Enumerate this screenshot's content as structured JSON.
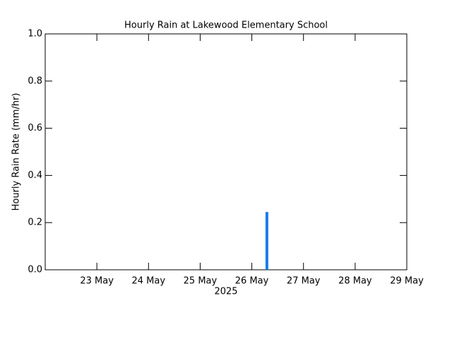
{
  "chart_data": {
    "type": "bar",
    "title": "Hourly Rain at Lakewood Elementary School",
    "ylabel": "Hourly Rain Rate (mm/hr)",
    "xlabel": "2025",
    "x": [
      "2025-05-26T07:00"
    ],
    "values": [
      0.245
    ],
    "color": "#1a7be8",
    "xlim": [
      "2025-05-22",
      "2025-05-29"
    ],
    "xticks": [
      {
        "value": "2025-05-23",
        "label": "23 May"
      },
      {
        "value": "2025-05-24",
        "label": "24 May"
      },
      {
        "value": "2025-05-25",
        "label": "25 May"
      },
      {
        "value": "2025-05-26",
        "label": "26 May"
      },
      {
        "value": "2025-05-27",
        "label": "27 May"
      },
      {
        "value": "2025-05-28",
        "label": "28 May"
      },
      {
        "value": "2025-05-29",
        "label": "29 May"
      }
    ],
    "ylim": [
      0,
      1
    ],
    "yticks": [
      {
        "value": 0,
        "label": "0.0"
      },
      0.2,
      0.4,
      0.6,
      0.8,
      {
        "value": 1,
        "label": "1.0"
      }
    ]
  }
}
